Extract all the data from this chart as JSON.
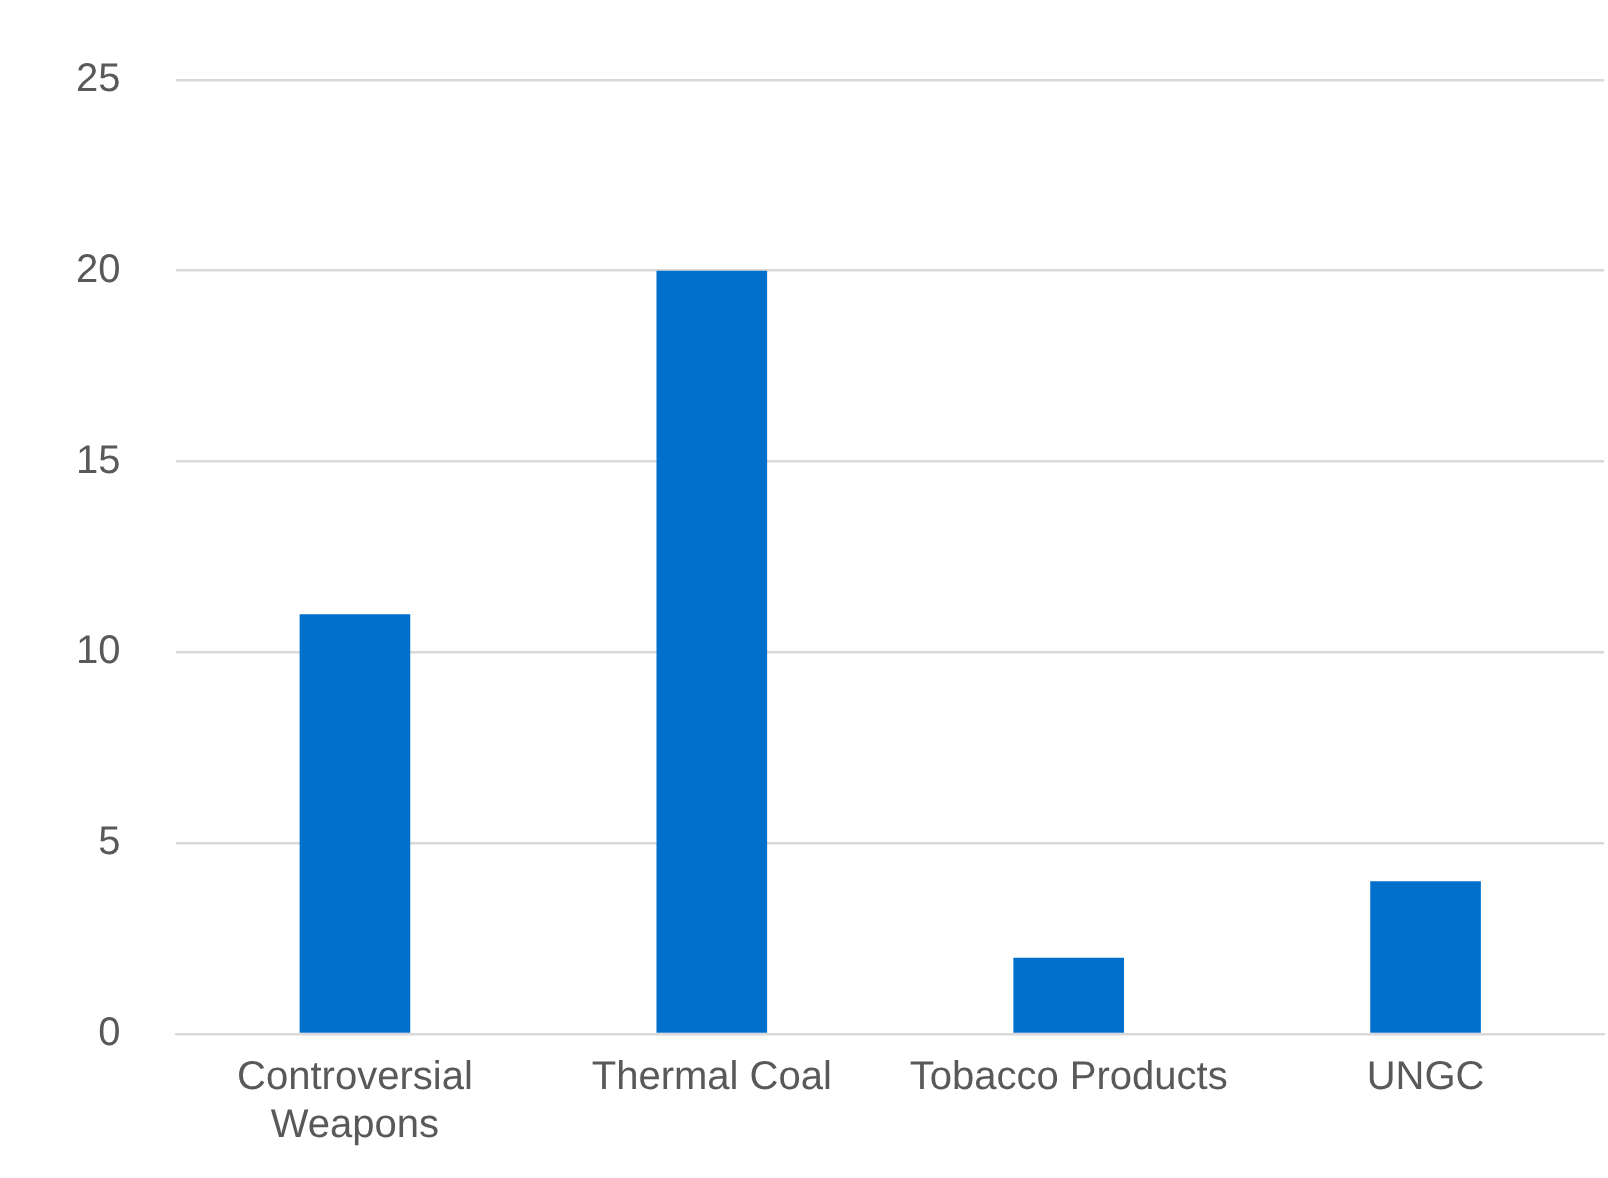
{
  "chart_data": {
    "type": "bar",
    "categories": [
      "Controversial Weapons",
      "Thermal Coal",
      "Tobacco Products",
      "UNGC"
    ],
    "values": [
      11,
      20,
      2,
      4
    ],
    "color": "#0070cc",
    "ylim": [
      0,
      25
    ],
    "yticks": [
      0,
      5,
      10,
      15,
      20,
      25
    ],
    "grid": "y",
    "legend": false
  }
}
